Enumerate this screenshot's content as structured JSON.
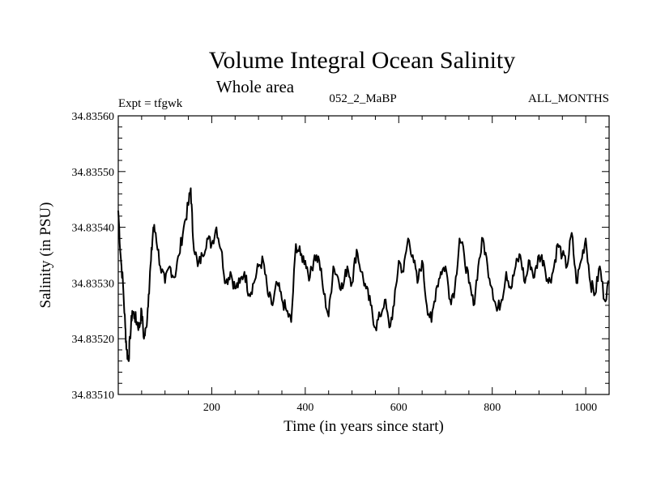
{
  "chart_data": {
    "type": "line",
    "title": "Volume Integral Ocean Salinity",
    "subtitle": "Whole area",
    "annotations": {
      "left": "Expt = tfgwk",
      "center": "052_2_MaBP",
      "right": "ALL_MONTHS"
    },
    "xlabel": "Time (in years since start)",
    "ylabel": "Salinity (in PSU)",
    "xlim": [
      0,
      1050
    ],
    "ylim": [
      34.8351,
      34.8356
    ],
    "xticks": [
      200,
      400,
      600,
      800,
      1000
    ],
    "xtick_labels": [
      "200",
      "400",
      "600",
      "800",
      "1000"
    ],
    "yticks": [
      34.8351,
      34.8352,
      34.8353,
      34.8354,
      34.8355,
      34.8356
    ],
    "ytick_labels": [
      "34.83510",
      "34.83520",
      "34.83530",
      "34.83540",
      "34.83550",
      "34.83560"
    ],
    "series": [
      {
        "name": "salinity",
        "x": [
          0,
          5,
          10,
          15,
          18,
          22,
          25,
          30,
          35,
          40,
          45,
          50,
          55,
          60,
          65,
          70,
          75,
          80,
          90,
          100,
          110,
          120,
          130,
          140,
          150,
          155,
          160,
          170,
          180,
          190,
          200,
          210,
          220,
          230,
          240,
          250,
          260,
          270,
          280,
          290,
          300,
          310,
          320,
          330,
          340,
          350,
          360,
          370,
          380,
          390,
          400,
          410,
          420,
          430,
          440,
          450,
          460,
          470,
          480,
          490,
          500,
          510,
          520,
          530,
          540,
          550,
          560,
          570,
          580,
          590,
          600,
          610,
          620,
          630,
          640,
          650,
          660,
          670,
          680,
          690,
          700,
          710,
          720,
          730,
          740,
          750,
          760,
          770,
          780,
          790,
          800,
          810,
          820,
          830,
          840,
          850,
          860,
          870,
          880,
          890,
          900,
          910,
          920,
          930,
          940,
          950,
          960,
          970,
          980,
          990,
          1000,
          1010,
          1020,
          1030,
          1040,
          1050
        ],
        "values": [
          34.83543,
          34.83535,
          34.8353,
          34.83522,
          34.83518,
          34.83516,
          34.8352,
          34.83525,
          34.83524,
          34.83523,
          34.83522,
          34.83525,
          34.8352,
          34.83522,
          34.83528,
          34.83534,
          34.8354,
          34.83539,
          34.83533,
          34.8353,
          34.83533,
          34.83531,
          34.83535,
          34.8354,
          34.83544,
          34.83547,
          34.83538,
          34.83533,
          34.83535,
          34.83538,
          34.83537,
          34.8354,
          34.83536,
          34.8353,
          34.83532,
          34.83529,
          34.8353,
          34.83532,
          34.83528,
          34.8353,
          34.83533,
          34.83534,
          34.83528,
          34.83526,
          34.8353,
          34.83527,
          34.83525,
          34.83523,
          34.83537,
          34.83535,
          34.83534,
          34.83531,
          34.83535,
          34.83534,
          34.83528,
          34.83524,
          34.83533,
          34.83531,
          34.83529,
          34.83533,
          34.8353,
          34.83536,
          34.83532,
          34.83529,
          34.83526,
          34.83522,
          34.83524,
          34.83527,
          34.83522,
          34.83526,
          34.83534,
          34.83532,
          34.83538,
          34.83535,
          34.8353,
          34.83534,
          34.83526,
          34.83523,
          34.83529,
          34.83532,
          34.83533,
          34.83527,
          34.83529,
          34.83538,
          34.83535,
          34.8353,
          34.83526,
          34.83533,
          34.83538,
          34.83533,
          34.83529,
          34.83525,
          34.83527,
          34.83532,
          34.83529,
          34.83533,
          34.83535,
          34.8353,
          34.83534,
          34.83531,
          34.83535,
          34.83534,
          34.8353,
          34.83532,
          34.83537,
          34.83535,
          34.83533,
          34.83539,
          34.8353,
          34.83534,
          34.83538,
          34.8353,
          34.83528,
          34.83533,
          34.83527,
          34.8353
        ]
      }
    ]
  }
}
